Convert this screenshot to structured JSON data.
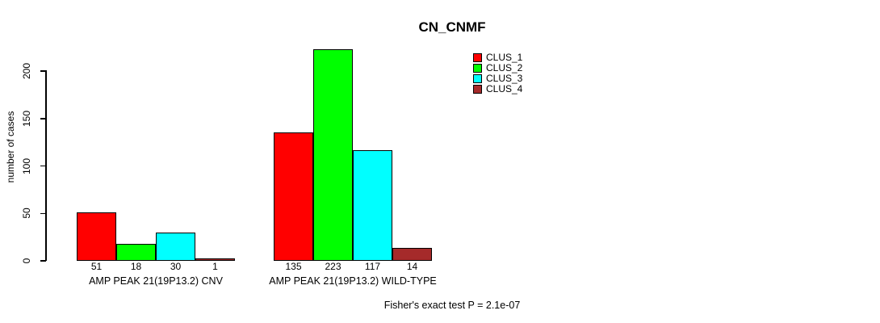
{
  "chart_data": {
    "type": "bar",
    "title": "CN_CNMF",
    "ylabel": "number of cases",
    "xlabel": "",
    "ylim": [
      0,
      230
    ],
    "yticks": [
      0,
      50,
      100,
      150,
      200
    ],
    "grid": false,
    "legend_position": "top-right",
    "categories": [
      "AMP PEAK 21(19P13.2) CNV",
      "AMP PEAK 21(19P13.2) WILD-TYPE"
    ],
    "series": [
      {
        "name": "CLUS_1",
        "color": "#FF0000",
        "values": [
          51,
          135
        ]
      },
      {
        "name": "CLUS_2",
        "color": "#00FF00",
        "values": [
          18,
          223
        ]
      },
      {
        "name": "CLUS_3",
        "color": "#00FFFF",
        "values": [
          30,
          117
        ]
      },
      {
        "name": "CLUS_4",
        "color": "#A52A2A",
        "values": [
          1,
          14
        ]
      }
    ],
    "bar_value_labels": [
      [
        51,
        18,
        30,
        1
      ],
      [
        135,
        223,
        117,
        14
      ]
    ],
    "annotation": "Fisher's exact test P = 2.1e-07"
  },
  "colors": {
    "background": "#FFFFFF",
    "axis": "#000000",
    "text": "#000000",
    "bar_border": "#000000"
  }
}
